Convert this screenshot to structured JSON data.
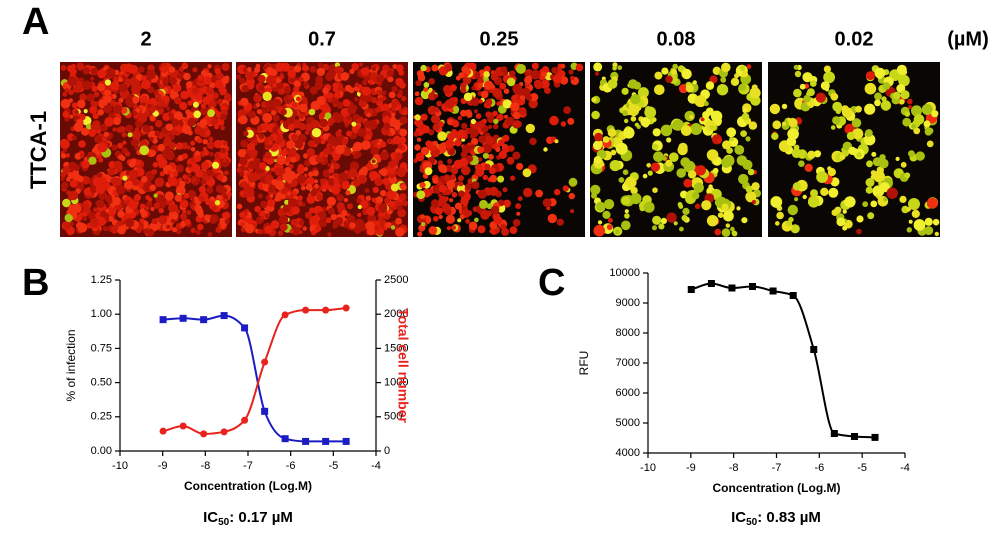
{
  "panel_a": {
    "label": "A",
    "row_label": "TTCA-1",
    "unit": "(µM)",
    "concentrations": [
      "2",
      "0.7",
      "0.25",
      "0.08",
      "0.02"
    ]
  },
  "chart_data": [
    {
      "type": "line",
      "panel": "B",
      "x": [
        -8.99,
        -8.52,
        -8.04,
        -7.56,
        -7.08,
        -6.61,
        -6.13,
        -5.65,
        -5.18,
        -4.7
      ],
      "xlim": [
        -10,
        -4
      ],
      "xticks": [
        -10,
        -9,
        -8,
        -7,
        -6,
        -5,
        -4
      ],
      "xlabel": "Concentration (Log.M)",
      "ylabel": "% of infection",
      "ylim": [
        0,
        1.25
      ],
      "yticks": [
        {
          "value": 0,
          "label": "0.00"
        },
        {
          "value": 0.25,
          "label": "0.25"
        },
        {
          "value": 0.5,
          "label": "0.50"
        },
        {
          "value": 0.75,
          "label": "0.75"
        },
        {
          "value": 1,
          "label": "1.00"
        },
        {
          "value": 1.25,
          "label": "1.25"
        }
      ],
      "y2label": "Total cell number",
      "y2lim": [
        0,
        2500
      ],
      "y2ticks": [
        0,
        500,
        1000,
        1500,
        2000,
        2500
      ],
      "series": [
        {
          "color": "#1c1cc4",
          "marker": "square",
          "values": [
            0.96,
            0.97,
            0.96,
            0.99,
            0.9,
            0.29,
            0.09,
            0.07,
            0.07,
            0.07
          ]
        },
        {
          "color": "#e8221c",
          "marker": "circle",
          "axis": "y2",
          "values": [
            290,
            365,
            250,
            280,
            450,
            1300,
            1990,
            2060,
            2060,
            2090
          ]
        }
      ],
      "caption": {
        "prefix": "IC",
        "subscript": "50",
        "text": ": 0.17 µM"
      }
    },
    {
      "type": "line",
      "panel": "C",
      "x": [
        -8.99,
        -8.52,
        -8.04,
        -7.56,
        -7.08,
        -6.61,
        -6.13,
        -5.65,
        -5.18,
        -4.7
      ],
      "xlim": [
        -10,
        -4
      ],
      "xticks": [
        -10,
        -9,
        -8,
        -7,
        -6,
        -5,
        -4
      ],
      "xlabel": "Concentration (Log.M)",
      "ylabel": "RFU",
      "ylim": [
        4000,
        10000
      ],
      "yticks": [
        4000,
        5000,
        6000,
        7000,
        8000,
        9000,
        10000
      ],
      "series": [
        {
          "color": "#000000",
          "marker": "square",
          "values": [
            9450,
            9650,
            9500,
            9550,
            9400,
            9250,
            7450,
            4650,
            4550,
            4520
          ]
        }
      ],
      "caption": {
        "prefix": "IC",
        "subscript": "50",
        "text": ": 0.83 µM"
      }
    }
  ]
}
